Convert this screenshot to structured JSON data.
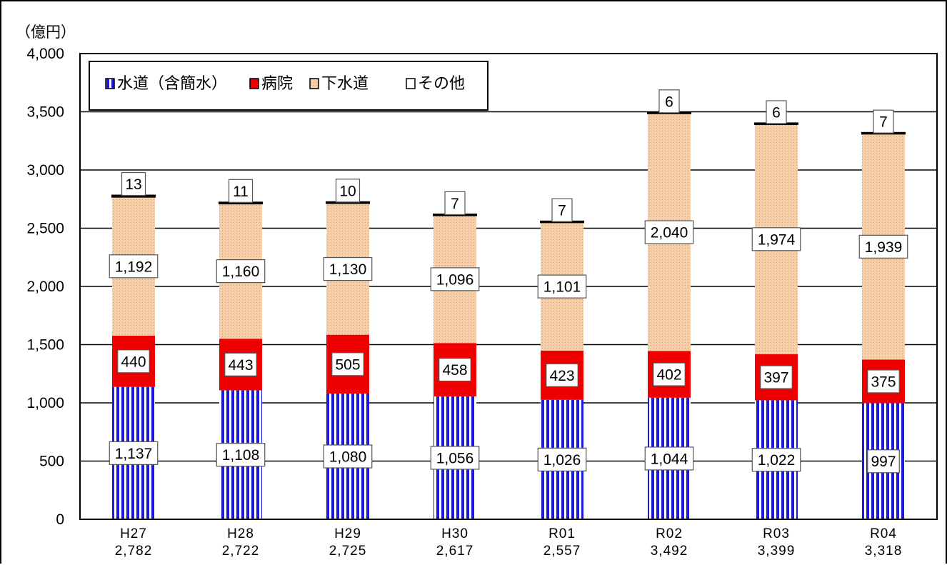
{
  "chart_data": {
    "type": "bar",
    "stacked": true,
    "y_unit_label": "（億円）",
    "ylim": [
      0,
      4000
    ],
    "y_ticks": [
      "0",
      "500",
      "1,000",
      "1,500",
      "2,000",
      "2,500",
      "3,000",
      "3,500",
      "4,000"
    ],
    "y_tick_values": [
      0,
      500,
      1000,
      1500,
      2000,
      2500,
      3000,
      3500,
      4000
    ],
    "grid": true,
    "legend_position": "top-left",
    "categories": [
      "H27",
      "H28",
      "H29",
      "H30",
      "R01",
      "R02",
      "R03",
      "R04"
    ],
    "totals": [
      "2,782",
      "2,722",
      "2,725",
      "2,617",
      "2,557",
      "3,492",
      "3,399",
      "3,318"
    ],
    "series": [
      {
        "name": "水道（含簡水）",
        "color": "#1a1ad8",
        "pattern": "vertical-stripes",
        "values": [
          1137,
          1108,
          1080,
          1056,
          1026,
          1044,
          1022,
          997
        ],
        "labels": [
          "1,137",
          "1,108",
          "1,080",
          "1,056",
          "1,026",
          "1,044",
          "1,022",
          "997"
        ]
      },
      {
        "name": "病院",
        "color": "#ee0000",
        "pattern": "solid",
        "values": [
          440,
          443,
          505,
          458,
          423,
          402,
          397,
          375
        ],
        "labels": [
          "440",
          "443",
          "505",
          "458",
          "423",
          "402",
          "397",
          "375"
        ]
      },
      {
        "name": "下水道",
        "color": "#f4c8a0",
        "pattern": "dotted",
        "values": [
          1192,
          1160,
          1130,
          1096,
          1101,
          2040,
          1974,
          1939
        ],
        "labels": [
          "1,192",
          "1,160",
          "1,130",
          "1,096",
          "1,101",
          "2,040",
          "1,974",
          "1,939"
        ]
      },
      {
        "name": "その他",
        "color": "#ffffff",
        "pattern": "solid",
        "values": [
          13,
          11,
          10,
          7,
          7,
          6,
          6,
          7
        ],
        "labels": [
          "13",
          "11",
          "10",
          "7",
          "7",
          "6",
          "6",
          "7"
        ]
      }
    ]
  }
}
